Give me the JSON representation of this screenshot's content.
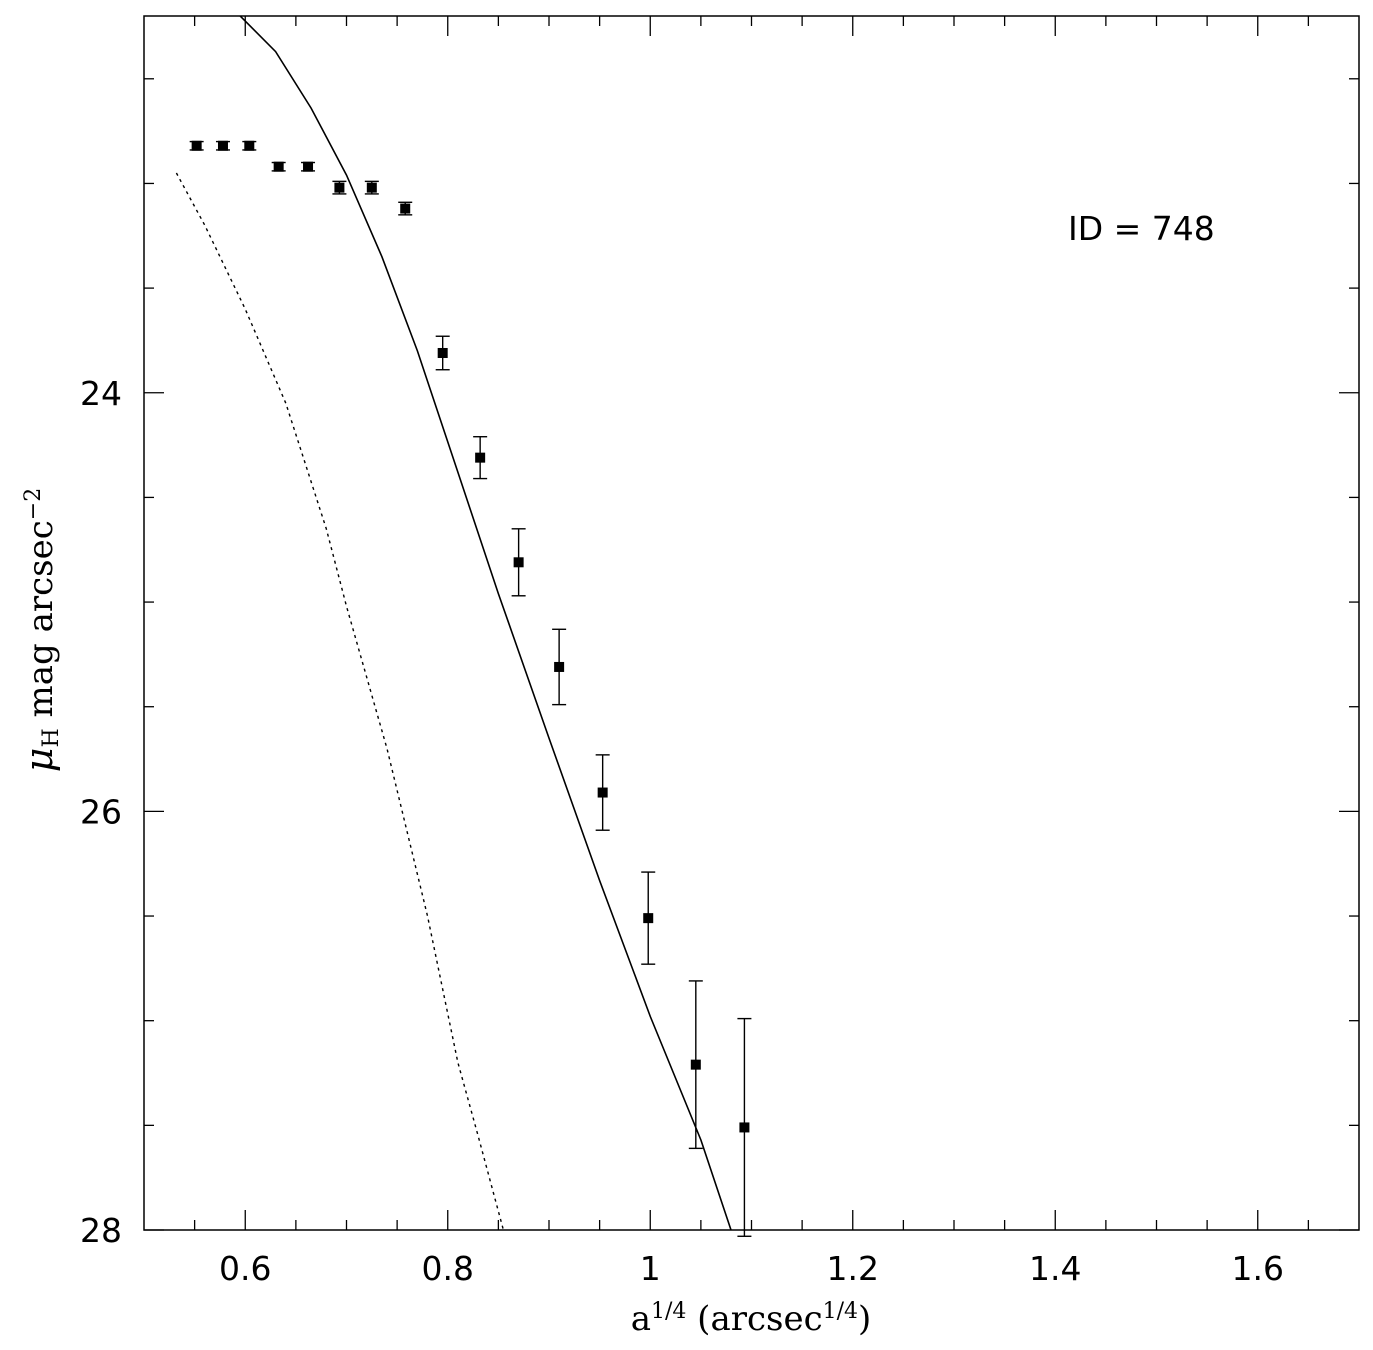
{
  "chart_data": {
    "type": "scatter",
    "annotation": "ID = 748",
    "xlabel": {
      "base": "a",
      "exp1": "1/4",
      "middle": " (arcsec",
      "exp2": "1/4",
      "end": ")"
    },
    "ylabel": {
      "symbol": "μ",
      "sub": "H",
      "text": " mag arcsec",
      "exp": "−2"
    },
    "xlim": [
      0.5,
      1.7
    ],
    "ylim": [
      28,
      22.2
    ],
    "x_ticks": [
      "0.6",
      "0.8",
      "1",
      "1.2",
      "1.4",
      "1.6"
    ],
    "y_ticks": [
      "24",
      "26",
      "28"
    ],
    "grid": false,
    "series": [
      {
        "kind": "points",
        "x": [
          0.552,
          0.578,
          0.604,
          0.633,
          0.662,
          0.693,
          0.725,
          0.758,
          0.795,
          0.832,
          0.87,
          0.91,
          0.953,
          0.998,
          1.045,
          1.093
        ],
        "y": [
          22.82,
          22.82,
          22.82,
          22.92,
          22.92,
          23.02,
          23.02,
          23.12,
          23.81,
          24.31,
          24.81,
          25.31,
          25.91,
          26.51,
          27.21,
          27.51
        ],
        "err": [
          0.02,
          0.02,
          0.02,
          0.02,
          0.02,
          0.03,
          0.03,
          0.03,
          0.08,
          0.1,
          0.16,
          0.18,
          0.18,
          0.22,
          0.4,
          0.52
        ]
      },
      {
        "kind": "line",
        "style": "solid",
        "x": [
          0.595,
          0.63,
          0.665,
          0.7,
          0.735,
          0.77,
          0.81,
          0.85,
          0.9,
          0.95,
          1.0,
          1.05,
          1.088
        ],
        "y": [
          22.2,
          22.37,
          22.64,
          22.96,
          23.35,
          23.8,
          24.38,
          24.96,
          25.65,
          26.33,
          26.98,
          27.57,
          28.12
        ]
      },
      {
        "kind": "line",
        "style": "dotted",
        "x": [
          0.532,
          0.56,
          0.6,
          0.64,
          0.68,
          0.7,
          0.74,
          0.78,
          0.81,
          0.83,
          0.855
        ],
        "y": [
          22.95,
          23.2,
          23.6,
          24.05,
          24.65,
          25.02,
          25.7,
          26.5,
          27.2,
          27.55,
          28.0
        ]
      }
    ]
  }
}
